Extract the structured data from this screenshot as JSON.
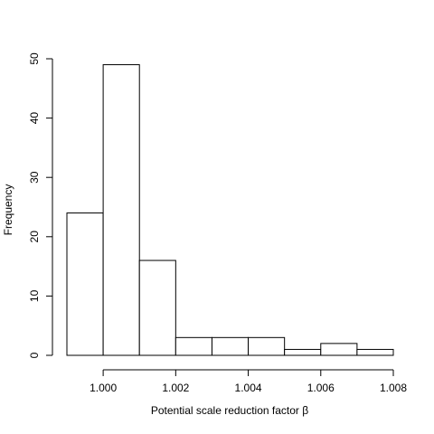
{
  "chart_data": {
    "type": "bar",
    "subtype": "histogram",
    "title": "",
    "xlabel": "Potential scale reduction factor β",
    "ylabel": "Frequency",
    "bins": [
      {
        "start": 0.999,
        "end": 1.0,
        "count": 24
      },
      {
        "start": 1.0,
        "end": 1.001,
        "count": 49
      },
      {
        "start": 1.001,
        "end": 1.002,
        "count": 16
      },
      {
        "start": 1.002,
        "end": 1.003,
        "count": 3
      },
      {
        "start": 1.003,
        "end": 1.004,
        "count": 3
      },
      {
        "start": 1.004,
        "end": 1.005,
        "count": 3
      },
      {
        "start": 1.005,
        "end": 1.006,
        "count": 1
      },
      {
        "start": 1.006,
        "end": 1.007,
        "count": 2
      },
      {
        "start": 1.007,
        "end": 1.008,
        "count": 1
      }
    ],
    "xticks": [
      1.0,
      1.002,
      1.004,
      1.006,
      1.008
    ],
    "xtick_labels": [
      "1.000",
      "1.002",
      "1.004",
      "1.006",
      "1.008"
    ],
    "yticks": [
      0,
      10,
      20,
      30,
      40,
      50
    ],
    "ytick_labels": [
      "0",
      "10",
      "20",
      "30",
      "40",
      "50"
    ],
    "xlim": [
      0.999,
      1.008
    ],
    "ylim": [
      0,
      50
    ],
    "grid": false,
    "bar_fill": "#ffffff",
    "bar_stroke": "#000000"
  }
}
